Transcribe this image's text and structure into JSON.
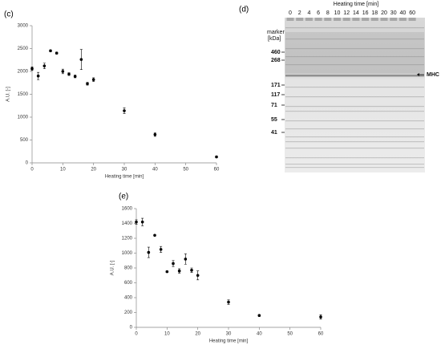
{
  "chart_data": [
    {
      "type": "scatter",
      "panel_label": "(c)",
      "xlabel": "Heating time [min]",
      "ylabel": "A.U. [-]",
      "color": "#000000",
      "x": [
        0,
        2,
        4,
        6,
        8,
        10,
        12,
        14,
        16,
        18,
        20,
        30,
        40,
        60
      ],
      "values": [
        2060,
        1900,
        2120,
        2450,
        2400,
        2000,
        1940,
        1890,
        2260,
        1730,
        1820,
        1140,
        620,
        130
      ],
      "errors": [
        40,
        80,
        60,
        20,
        20,
        50,
        30,
        30,
        220,
        30,
        40,
        60,
        40,
        20
      ],
      "xlim": [
        0,
        60
      ],
      "ylim": [
        0,
        3000
      ],
      "xticks": [
        0,
        10,
        20,
        30,
        40,
        50,
        60
      ],
      "yticks": [
        0,
        500,
        1000,
        1500,
        2000,
        2500,
        3000
      ]
    },
    {
      "type": "scatter",
      "panel_label": "(e)",
      "xlabel": "Heating time [min]",
      "ylabel": "A.U. [-]",
      "color": "#000000",
      "x": [
        0,
        2,
        4,
        6,
        8,
        10,
        12,
        14,
        16,
        18,
        20,
        30,
        40,
        60
      ],
      "values": [
        1420,
        1420,
        1010,
        1240,
        1050,
        750,
        860,
        760,
        920,
        770,
        700,
        340,
        160,
        140
      ],
      "errors": [
        30,
        50,
        70,
        10,
        40,
        10,
        40,
        30,
        70,
        30,
        60,
        30,
        10,
        30
      ],
      "xlim": [
        0,
        60
      ],
      "ylim": [
        0,
        1600
      ],
      "xticks": [
        0,
        10,
        20,
        30,
        40,
        50,
        60
      ],
      "yticks": [
        0,
        200,
        400,
        600,
        800,
        1000,
        1200,
        1400,
        1600
      ]
    }
  ],
  "gel": {
    "panel_label": "(d)",
    "title": "Heating time [min]",
    "lanes": [
      "0",
      "2",
      "4",
      "6",
      "8",
      "10",
      "12",
      "14",
      "16",
      "18",
      "20",
      "30",
      "40",
      "60"
    ],
    "marker_title": "marker",
    "marker_unit": "[kDa]",
    "markers": [
      "460",
      "268",
      "171",
      "117",
      "71",
      "55",
      "41"
    ],
    "band_label": "MHC"
  }
}
